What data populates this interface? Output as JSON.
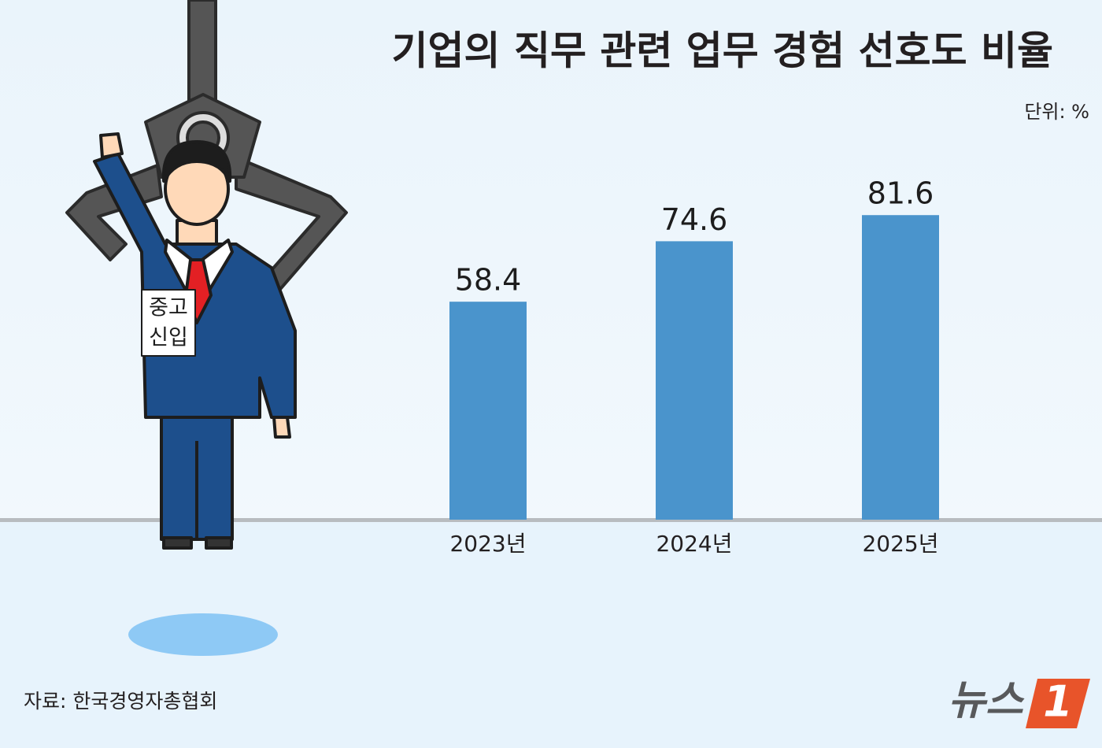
{
  "chart_data": {
    "type": "bar",
    "title": "기업의 직무 관련 업무 경험 선호도 비율",
    "unit": "단위: %",
    "categories": [
      "2023년",
      "2024년",
      "2025년"
    ],
    "values": [
      58.4,
      74.6,
      81.6
    ],
    "color": "#4a94cc",
    "source": "자료:  한국경영자총협회",
    "badge": [
      "중고",
      "신입"
    ],
    "logo": {
      "text": "뉴스",
      "mark": "1"
    }
  }
}
